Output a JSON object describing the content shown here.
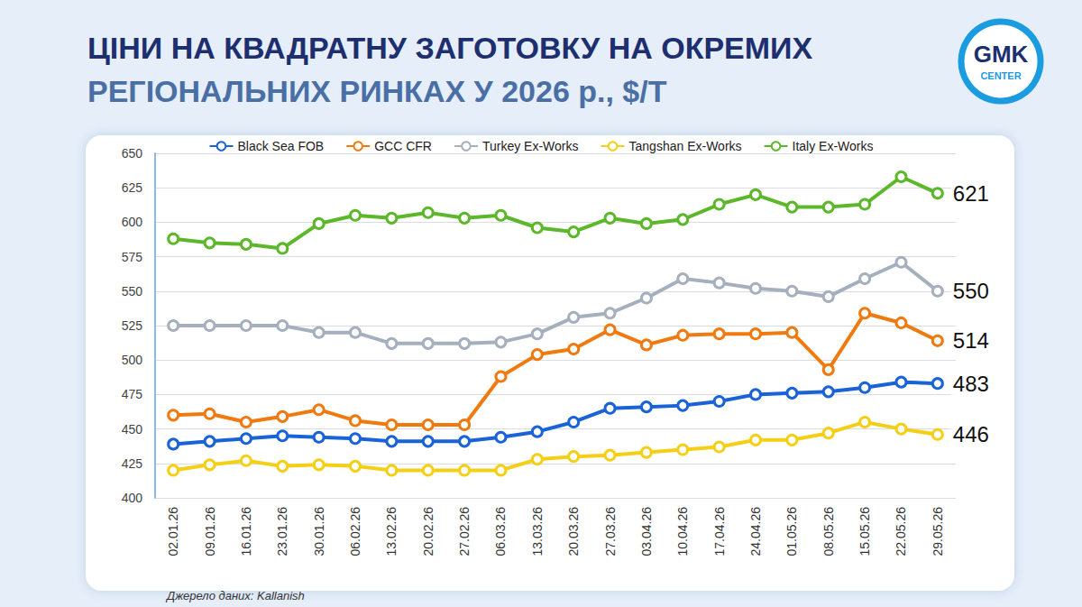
{
  "chart_data": {
    "type": "line",
    "title": "ЦІНИ НА КВАДРАТНУ ЗАГОТОВКУ НА ОКРЕМИХ РЕГІОНАЛЬНИХ РИНКАХ У 2026 р., $/Т",
    "source": "Джерело даних: Kallanish",
    "logo": [
      "GMK",
      "CENTER"
    ],
    "categories": [
      "02.01.26",
      "09.01.26",
      "16.01.26",
      "23.01.26",
      "30.01.26",
      "06.02.26",
      "13.02.26",
      "20.02.26",
      "27.02.26",
      "06.03.26",
      "13.03.26",
      "20.03.26",
      "27.03.26",
      "03.04.26",
      "10.04.26",
      "17.04.26",
      "24.04.26",
      "01.05.26",
      "08.05.26",
      "15.05.26",
      "22.05.26",
      "29.05.26"
    ],
    "series": [
      {
        "name": "Black Sea FOB",
        "color": "#1a63d6",
        "values": [
          439,
          441,
          443,
          445,
          444,
          443,
          441,
          441,
          441,
          444,
          448,
          455,
          465,
          466,
          467,
          470,
          475,
          476,
          477,
          480,
          484,
          483
        ],
        "value_labels": [
          null,
          null,
          null,
          null,
          null,
          null,
          null,
          null,
          null,
          null,
          null,
          null,
          null,
          null,
          null,
          null,
          null,
          null,
          null,
          null,
          null,
          "483"
        ]
      },
      {
        "name": "GCC CFR",
        "color": "#f07a10",
        "values": [
          460,
          461,
          455,
          459,
          464,
          456,
          453,
          453,
          453,
          488,
          504,
          508,
          522,
          511,
          518,
          519,
          519,
          520,
          493,
          534,
          527,
          514
        ],
        "value_labels": [
          null,
          null,
          null,
          null,
          null,
          null,
          null,
          null,
          null,
          null,
          null,
          null,
          null,
          null,
          null,
          null,
          null,
          null,
          null,
          null,
          null,
          "514"
        ]
      },
      {
        "name": "Turkey Ex-Works",
        "color": "#a5afbd",
        "values": [
          525,
          525,
          525,
          525,
          520,
          520,
          512,
          512,
          512,
          513,
          519,
          531,
          534,
          545,
          559,
          556,
          552,
          550,
          546,
          559,
          571,
          550
        ],
        "value_labels": [
          null,
          null,
          null,
          null,
          null,
          null,
          null,
          null,
          null,
          null,
          null,
          null,
          null,
          null,
          null,
          null,
          null,
          null,
          null,
          null,
          null,
          "550"
        ]
      },
      {
        "name": "Tangshan Ex-Works",
        "color": "#f5cf16",
        "values": [
          420,
          424,
          427,
          423,
          424,
          423,
          420,
          420,
          420,
          420,
          428,
          430,
          431,
          433,
          435,
          437,
          442,
          442,
          447,
          455,
          450,
          446
        ],
        "value_labels": [
          null,
          null,
          null,
          null,
          null,
          null,
          null,
          null,
          null,
          null,
          null,
          null,
          null,
          null,
          null,
          null,
          null,
          null,
          null,
          null,
          null,
          "446"
        ]
      },
      {
        "name": "Italy Ex-Works",
        "color": "#5cb82a",
        "values": [
          588,
          585,
          584,
          581,
          599,
          605,
          603,
          607,
          603,
          605,
          596,
          593,
          603,
          599,
          602,
          613,
          620,
          611,
          611,
          613,
          633,
          621
        ],
        "value_labels": [
          null,
          null,
          null,
          null,
          null,
          null,
          null,
          null,
          null,
          null,
          null,
          null,
          null,
          null,
          null,
          null,
          null,
          null,
          null,
          null,
          null,
          "621"
        ]
      }
    ],
    "ylim": [
      400,
      650
    ],
    "yticks": [
      400,
      425,
      450,
      475,
      500,
      525,
      550,
      575,
      600,
      625,
      650
    ],
    "grid": true,
    "legend": "top",
    "marker": "circle"
  }
}
